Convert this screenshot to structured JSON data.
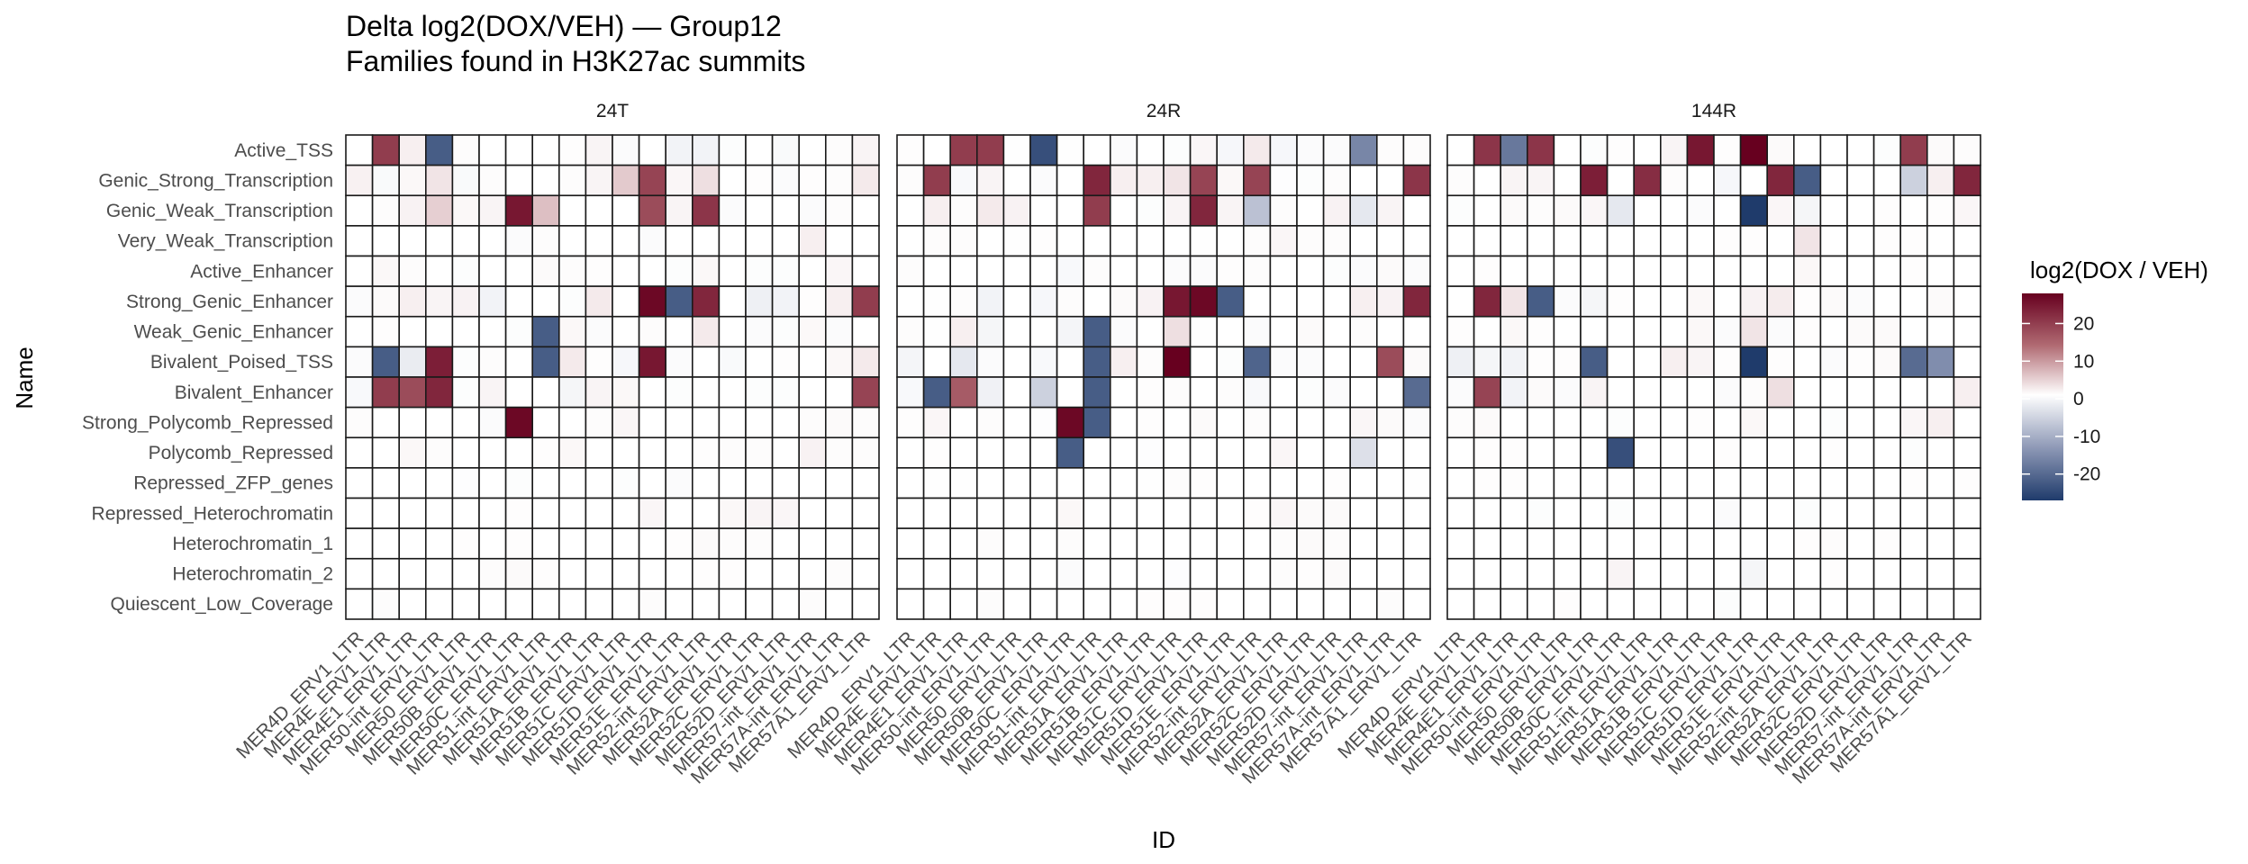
{
  "chart_data": {
    "type": "heatmap",
    "title": "Delta log2(DOX/VEH) — Group12",
    "subtitle": "Families found in H3K27ac summits",
    "xlabel": "ID",
    "ylabel": "Name",
    "legend": {
      "title": "log2(DOX / VEH)",
      "position": "right",
      "ticks": [
        20,
        10,
        0,
        -10,
        -20
      ],
      "tick_labels": [
        "20",
        "10",
        "0",
        "-10",
        "-20"
      ],
      "range": [
        -27,
        28
      ],
      "colors": {
        "low": "#1f3b6b",
        "mid": "#ffffff",
        "high": "#67001f"
      }
    },
    "grid": false,
    "facets": [
      "24T",
      "24R",
      "144R"
    ],
    "x": [
      "MER4D_ERV1_LTR",
      "MER4E_ERV1_LTR",
      "MER4E1_ERV1_LTR",
      "MER50-int_ERV1_LTR",
      "MER50_ERV1_LTR",
      "MER50B_ERV1_LTR",
      "MER50C_ERV1_LTR",
      "MER51-int_ERV1_LTR",
      "MER51A_ERV1_LTR",
      "MER51B_ERV1_LTR",
      "MER51C_ERV1_LTR",
      "MER51D_ERV1_LTR",
      "MER51E_ERV1_LTR",
      "MER52-int_ERV1_LTR",
      "MER52A_ERV1_LTR",
      "MER52C_ERV1_LTR",
      "MER52D_ERV1_LTR",
      "MER57-int_ERV1_LTR",
      "MER57A-int_ERV1_LTR",
      "MER57A1_ERV1_LTR"
    ],
    "y": [
      "Active_TSS",
      "Genic_Strong_Transcription",
      "Genic_Weak_Transcription",
      "Very_Weak_Transcription",
      "Active_Enhancer",
      "Strong_Genic_Enhancer",
      "Weak_Genic_Enhancer",
      "Bivalent_Poised_TSS",
      "Bivalent_Enhancer",
      "Strong_Polycomb_Repressed",
      "Polycomb_Repressed",
      "Repressed_ZFP_genes",
      "Repressed_Heterochromatin",
      "Heterochromatin_1",
      "Heterochromatin_2",
      "Quiescent_Low_Coverage"
    ],
    "series": [
      {
        "name": "24T",
        "values": [
          [
            0,
            20,
            1.5,
            -22,
            0.3,
            0,
            0,
            0,
            0.2,
            1,
            -0.5,
            0,
            -1.5,
            -1.5,
            -0.3,
            0,
            -0.7,
            0,
            0.3,
            1
          ],
          [
            1.3,
            -0.7,
            0.7,
            2.5,
            -0.7,
            0.3,
            0,
            0,
            0.3,
            1,
            5,
            19,
            0.8,
            3,
            0,
            0.2,
            -0.5,
            0.2,
            0.3,
            2
          ],
          [
            0,
            0.3,
            1.2,
            4.5,
            0.7,
            1,
            25,
            6,
            0,
            0,
            0,
            18,
            1,
            21,
            -0.5,
            0,
            0,
            -0.5,
            0.3,
            0
          ],
          [
            0,
            0,
            0,
            0,
            0,
            0,
            -0.5,
            0.3,
            0,
            0,
            0,
            -0.5,
            0,
            0,
            0,
            0,
            0,
            1.5,
            0,
            0
          ],
          [
            0,
            0.7,
            0.3,
            0,
            -0.3,
            0,
            0,
            0.5,
            0.3,
            0.2,
            0,
            0,
            -0.3,
            0.7,
            0,
            -0.3,
            -0.3,
            0,
            0.8,
            0
          ],
          [
            -0.5,
            0.5,
            1.5,
            1,
            1.2,
            -1.5,
            0,
            0,
            -0.3,
            2,
            0,
            27,
            -22,
            23,
            0,
            -2,
            -1.5,
            0.2,
            1.5,
            20
          ],
          [
            0,
            0.2,
            0,
            0,
            0,
            0,
            -0.3,
            -22,
            0.7,
            -0.5,
            0,
            0.3,
            0,
            2,
            0,
            -0.5,
            -0.3,
            0.6,
            -0.5,
            0
          ],
          [
            -0.5,
            -22,
            -2.5,
            24,
            -0.3,
            0.3,
            0,
            -22,
            2,
            0.2,
            -1,
            25,
            -0.5,
            0,
            -0.7,
            0,
            0.2,
            0,
            0.7,
            2
          ],
          [
            -0.8,
            20,
            18,
            23,
            -0.3,
            1,
            0,
            0,
            -1.2,
            1,
            0.7,
            0,
            -0.3,
            0,
            0,
            -0.3,
            -0.3,
            0,
            0,
            19
          ],
          [
            0.3,
            0,
            0,
            0,
            0,
            -0.5,
            27,
            0,
            0,
            0.3,
            0.8,
            0,
            0,
            0,
            0,
            0,
            0,
            0.3,
            0.5,
            0.3
          ],
          [
            0,
            0,
            0.7,
            0.3,
            0,
            0,
            0,
            0.2,
            0.7,
            0,
            0,
            0,
            0,
            0.2,
            0.3,
            0.3,
            0,
            1.2,
            0.3,
            0.3
          ],
          [
            0,
            0,
            0,
            0,
            -0.2,
            0,
            -0.3,
            0,
            0,
            0,
            -0.3,
            0,
            -0.5,
            0,
            0,
            0,
            0,
            0,
            0,
            0
          ],
          [
            0,
            0,
            0,
            0,
            0,
            0,
            0.2,
            0,
            0,
            0,
            0,
            0.8,
            0,
            0,
            0.7,
            1,
            0.8,
            0,
            0,
            0
          ],
          [
            0,
            0,
            0,
            0,
            0.2,
            0,
            0.2,
            0,
            0,
            0,
            0,
            0,
            0.2,
            0.5,
            0.3,
            0.3,
            0,
            0,
            0,
            0
          ],
          [
            0,
            0,
            0,
            0,
            0,
            0.3,
            0.5,
            0.2,
            0,
            0,
            0,
            0,
            0,
            0.2,
            0.2,
            0,
            0,
            0,
            0.3,
            0
          ],
          [
            0,
            0.3,
            0,
            0,
            0,
            0,
            0,
            0,
            0,
            0,
            0,
            0.3,
            0,
            0,
            0,
            0,
            0,
            0.3,
            0,
            0
          ]
        ]
      },
      {
        "name": "24R",
        "values": [
          [
            0.2,
            0,
            20,
            20,
            0.1,
            -24,
            0.1,
            0,
            -0.5,
            0,
            -0.3,
            0.8,
            -1,
            2,
            -1,
            -0.5,
            -0.5,
            -16,
            0.3,
            0.3
          ],
          [
            0.3,
            20,
            -0.8,
            1,
            0,
            -0.5,
            0,
            23,
            1.5,
            1.5,
            2.5,
            19,
            0.7,
            19,
            -0.2,
            -0.3,
            0.3,
            0,
            0,
            21
          ],
          [
            0,
            1.5,
            0.3,
            2,
            1.2,
            0,
            0,
            20,
            0,
            -0.3,
            1,
            23,
            1,
            -8,
            0.3,
            0,
            1.2,
            -3,
            1,
            0
          ],
          [
            0,
            0.3,
            0.3,
            0,
            0.1,
            0.2,
            0,
            0,
            0,
            0,
            0,
            0.1,
            0,
            0.3,
            0.8,
            0.3,
            0.3,
            0,
            0,
            0
          ],
          [
            0.3,
            0,
            0,
            0,
            0,
            0,
            -0.8,
            0.3,
            0,
            0,
            -0.5,
            -0.5,
            0.2,
            0.3,
            0,
            0,
            -0.3,
            -0.5,
            0.5,
            -0.5
          ],
          [
            0,
            0.1,
            0.3,
            -1.5,
            0,
            -1,
            0.3,
            0,
            0.5,
            1.2,
            25,
            27,
            -22,
            0,
            0,
            0,
            0,
            1.5,
            1.2,
            23
          ],
          [
            0.3,
            0.1,
            1.5,
            -1.2,
            0,
            0,
            -1.3,
            -22,
            -0.5,
            0,
            3,
            -0.1,
            0,
            -0.5,
            0,
            0.5,
            0,
            0.3,
            0,
            0
          ],
          [
            -1.3,
            0,
            -3,
            -0.5,
            0,
            -0.8,
            0,
            -22,
            1.5,
            0.3,
            28,
            0,
            -0.3,
            -21,
            -0.5,
            -0.5,
            0,
            0,
            18,
            0.5
          ],
          [
            -0.8,
            -22,
            16,
            -1.8,
            0,
            -6,
            0,
            -22,
            0,
            0.2,
            0.3,
            0,
            0.3,
            -0.8,
            0,
            -0.3,
            -0.5,
            0,
            0,
            -20
          ],
          [
            0.2,
            0.8,
            0,
            0.3,
            0,
            -0.2,
            27,
            -22,
            0,
            0.2,
            0,
            0.5,
            0,
            0.3,
            0,
            0,
            0,
            0.8,
            0.5,
            -0.5
          ],
          [
            0,
            0.2,
            0,
            0,
            0,
            0,
            -22,
            0,
            0,
            -0.2,
            0,
            0,
            0,
            0,
            0.8,
            0,
            0,
            -4,
            0,
            0
          ],
          [
            0,
            0.1,
            0.1,
            0,
            0,
            0,
            0,
            0,
            0,
            0.1,
            0.3,
            0.2,
            0,
            0,
            0,
            0,
            0.2,
            0,
            0,
            0.1
          ],
          [
            0,
            0,
            0,
            0,
            0,
            0,
            0.7,
            0,
            0,
            0,
            0,
            0,
            0,
            0.2,
            0.8,
            0.5,
            0.5,
            0,
            0,
            0
          ],
          [
            0,
            0,
            0,
            0.3,
            0,
            0,
            0.3,
            0,
            0,
            0,
            0,
            0,
            0,
            0,
            0.3,
            0.5,
            0.3,
            0,
            0,
            0
          ],
          [
            0,
            0,
            0,
            0,
            0,
            0,
            -0.5,
            0,
            0,
            0,
            -0.2,
            0,
            0,
            0,
            0.3,
            0.2,
            0.5,
            0,
            0,
            0
          ],
          [
            0,
            0,
            0,
            0.3,
            0,
            0,
            0,
            0,
            0,
            0.2,
            0.2,
            0.2,
            0,
            0,
            0,
            0,
            0,
            0,
            0.3,
            0
          ]
        ]
      },
      {
        "name": "144R",
        "values": [
          [
            0,
            21,
            -18,
            21,
            0,
            -0.3,
            0.2,
            0,
            1,
            25,
            0.2,
            28,
            0.5,
            0,
            0,
            0,
            -0.3,
            20,
            0.5,
            0.3
          ],
          [
            0.3,
            0,
            1,
            1,
            0,
            24,
            0,
            22,
            0.3,
            0,
            -1,
            0,
            23,
            -22,
            0,
            0,
            0,
            -6,
            1.5,
            23
          ],
          [
            -0.3,
            0,
            0.5,
            0.3,
            0.5,
            0.8,
            -3,
            0,
            0,
            -0.5,
            0,
            -27,
            0.8,
            -1.2,
            0,
            0,
            0.2,
            0,
            0.2,
            0.8
          ],
          [
            0,
            0,
            0,
            0,
            0,
            0,
            0,
            0,
            0,
            0,
            0.2,
            0.2,
            0,
            2.5,
            0,
            0,
            0.2,
            0.2,
            0,
            0
          ],
          [
            0,
            0.2,
            0,
            0,
            0,
            0,
            0,
            0,
            0,
            0,
            0,
            0,
            0,
            0.7,
            0,
            0,
            0,
            0.2,
            0,
            0
          ],
          [
            0,
            23,
            2.5,
            -22,
            -0.5,
            -1.2,
            0.2,
            0,
            0,
            0.7,
            0,
            1.2,
            1.8,
            0.2,
            0.5,
            -0.5,
            0,
            0,
            0.5,
            0
          ],
          [
            0.2,
            0,
            0.7,
            0.2,
            0,
            0,
            0,
            0,
            0,
            0.7,
            -0.5,
            2.5,
            -0.5,
            0.2,
            0,
            0.5,
            0.5,
            0,
            0,
            0
          ],
          [
            -2,
            -1.2,
            -1.5,
            0.2,
            0.2,
            -22,
            0,
            0,
            1.5,
            1,
            0.2,
            -27,
            0.2,
            0,
            -0.5,
            0.2,
            0.5,
            -20,
            -15,
            0
          ],
          [
            -0.5,
            19,
            -1.5,
            0.5,
            -0.5,
            1,
            0,
            0,
            0,
            0,
            -0.5,
            0.3,
            3,
            0,
            0,
            0,
            0,
            0,
            0,
            1.5
          ],
          [
            0.3,
            0.5,
            0,
            0,
            0,
            0,
            -0.3,
            0,
            0,
            0.2,
            0,
            0.7,
            0,
            0,
            -0.3,
            0,
            0,
            0.8,
            1.5,
            0
          ],
          [
            0,
            0.2,
            0.2,
            0,
            0,
            0,
            -24,
            0,
            0,
            0,
            0.2,
            0,
            0,
            0,
            0.2,
            0,
            0,
            -0.3,
            0,
            0
          ],
          [
            0,
            0.2,
            0.2,
            0,
            0,
            0,
            0,
            0,
            0,
            0,
            0,
            0,
            0,
            0,
            0,
            0,
            0,
            0.2,
            0,
            0.2
          ],
          [
            0,
            0,
            0,
            -0.3,
            0,
            0,
            -0.3,
            0,
            0,
            0,
            -0.5,
            0,
            0,
            -0.3,
            0,
            0,
            0,
            0,
            0,
            0
          ],
          [
            0,
            0,
            0,
            0,
            0,
            0,
            0,
            0,
            0,
            0,
            0,
            0,
            0,
            0.2,
            0.3,
            0,
            0.2,
            0,
            0,
            0
          ],
          [
            0,
            0,
            0,
            0,
            0,
            0,
            1,
            0,
            0,
            0,
            0,
            -1.2,
            0,
            0,
            0.2,
            0,
            0,
            0,
            0,
            0
          ],
          [
            0,
            0,
            0,
            0,
            0.2,
            0,
            0,
            0,
            0,
            0,
            -0.3,
            0,
            0,
            0,
            0,
            0,
            0,
            0,
            0,
            0
          ]
        ]
      }
    ]
  }
}
